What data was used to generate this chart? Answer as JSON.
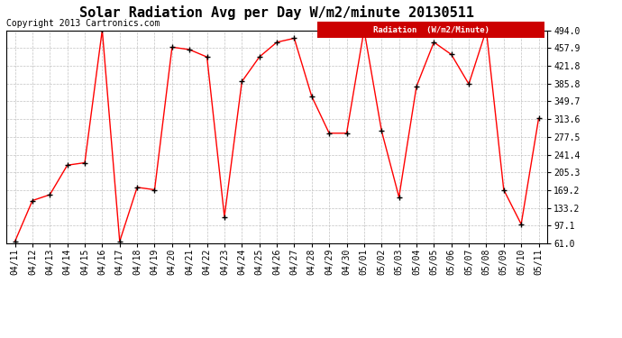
{
  "title": "Solar Radiation Avg per Day W/m2/minute 20130511",
  "copyright": "Copyright 2013 Cartronics.com",
  "legend_label": "Radiation  (W/m2/Minute)",
  "x_labels": [
    "04/11",
    "04/12",
    "04/13",
    "04/14",
    "04/15",
    "04/16",
    "04/17",
    "04/18",
    "04/19",
    "04/20",
    "04/21",
    "04/22",
    "04/23",
    "04/24",
    "04/25",
    "04/26",
    "04/27",
    "04/28",
    "04/29",
    "04/30",
    "05/01",
    "05/02",
    "05/03",
    "05/04",
    "05/05",
    "05/06",
    "05/07",
    "05/08",
    "05/09",
    "05/10",
    "05/11"
  ],
  "y_values": [
    65,
    148,
    160,
    220,
    225,
    495,
    65,
    175,
    170,
    460,
    455,
    440,
    115,
    390,
    440,
    470,
    478,
    360,
    285,
    285,
    495,
    290,
    155,
    380,
    470,
    445,
    385,
    495,
    170,
    100,
    315
  ],
  "y_ticks": [
    61.0,
    97.1,
    133.2,
    169.2,
    205.3,
    241.4,
    277.5,
    313.6,
    349.7,
    385.8,
    421.8,
    457.9,
    494.0
  ],
  "line_color": "#ff0000",
  "marker": "+",
  "marker_color": "#000000",
  "bg_color": "#ffffff",
  "plot_bg_color": "#ffffff",
  "grid_color": "#bbbbbb",
  "legend_bg": "#cc0000",
  "legend_text_color": "#ffffff",
  "title_fontsize": 11,
  "copyright_fontsize": 7,
  "tick_fontsize": 7,
  "ylim": [
    61.0,
    494.0
  ]
}
